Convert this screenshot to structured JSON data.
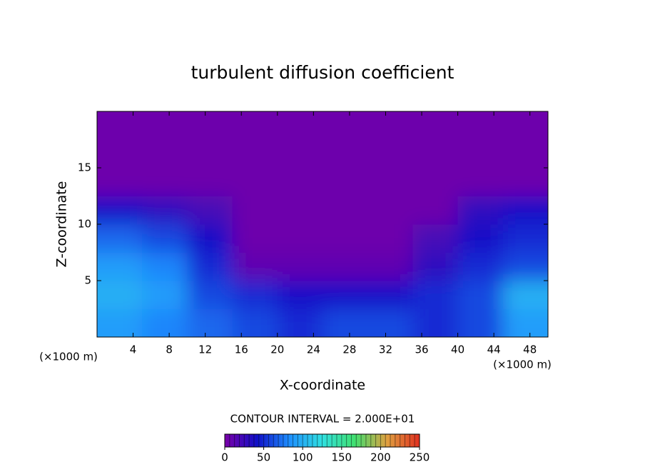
{
  "chart_data": {
    "type": "heatmap",
    "title": "turbulent diffusion coefficient",
    "xlabel": "X-coordinate",
    "ylabel": "Z-coordinate",
    "xunit": "(×1000 m)",
    "yunit": "(×1000 m)",
    "note": "CONTOUR INTERVAL = 2.000E+01",
    "xlim": [
      0,
      50
    ],
    "ylim": [
      0,
      20
    ],
    "xticks": [
      4,
      8,
      12,
      16,
      20,
      24,
      28,
      32,
      36,
      40,
      44,
      48
    ],
    "yticks": [
      5,
      10,
      15
    ],
    "x": [
      2.5,
      7.5,
      12.5,
      17.5,
      22.5,
      27.5,
      32.5,
      37.5,
      42.5,
      47.5
    ],
    "y": [
      1.25,
      3.75,
      6.25,
      8.75,
      11.25,
      13.75,
      16.25,
      18.75
    ],
    "values": [
      [
        90,
        80,
        70,
        60,
        50,
        60,
        60,
        50,
        60,
        90
      ],
      [
        100,
        90,
        60,
        50,
        40,
        40,
        40,
        50,
        60,
        100
      ],
      [
        90,
        80,
        50,
        10,
        10,
        10,
        10,
        30,
        50,
        60
      ],
      [
        70,
        60,
        40,
        5,
        5,
        5,
        5,
        20,
        40,
        50
      ],
      [
        40,
        30,
        20,
        5,
        5,
        5,
        5,
        5,
        30,
        40
      ],
      [
        5,
        5,
        5,
        5,
        5,
        5,
        5,
        5,
        5,
        5
      ],
      [
        5,
        5,
        5,
        5,
        5,
        5,
        5,
        5,
        5,
        5
      ],
      [
        5,
        5,
        5,
        5,
        5,
        5,
        5,
        5,
        5,
        5
      ]
    ],
    "colors": [
      "#7a00a8",
      "#1010c8",
      "#1e90ff",
      "#30e0e0",
      "#40e070",
      "#e0a040",
      "#e03020"
    ],
    "clim": [
      0,
      250
    ],
    "cticks": [
      0,
      50,
      100,
      150,
      200,
      250
    ]
  }
}
